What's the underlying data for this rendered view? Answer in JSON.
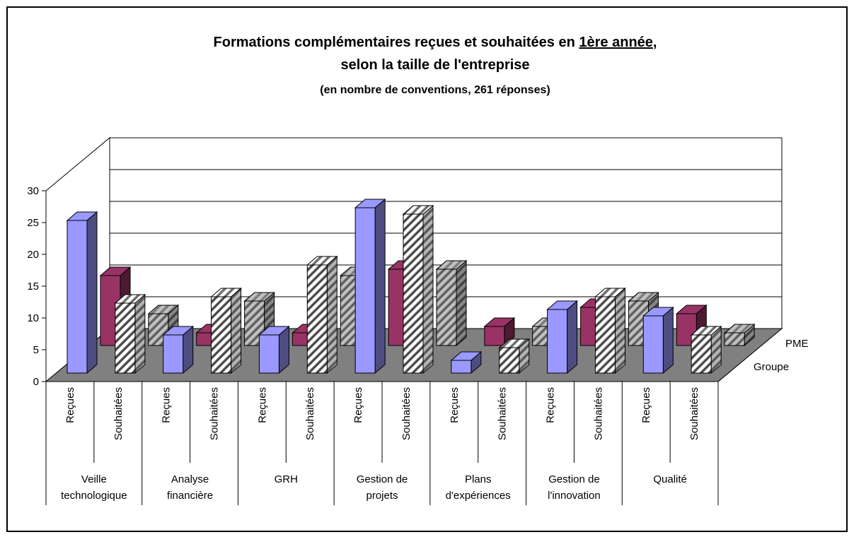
{
  "chart_data": {
    "type": "bar3d",
    "title": [
      "Formations complémentaires reçues et souhaitées en ",
      "1ère année",
      ",",
      "selon la taille de l'entreprise"
    ],
    "subtitle": "(en nombre de conventions, 261 réponses)",
    "categories": [
      "Reçues",
      "Souhaitées",
      "Reçues",
      "Souhaitées",
      "Reçues",
      "Souhaitées",
      "Reçues",
      "Souhaitées",
      "Reçues",
      "Souhaitées",
      "Reçues",
      "Souhaitées",
      "Reçues",
      "Souhaitées"
    ],
    "groups": [
      [
        "Veille",
        "technologique"
      ],
      [
        "Analyse",
        "financière"
      ],
      [
        "GRH"
      ],
      [
        "Gestion de",
        "projets"
      ],
      [
        "Plans",
        "d'expériences"
      ],
      [
        "Gestion de",
        "l'innovation"
      ],
      [
        "Qualité"
      ]
    ],
    "series": [
      {
        "name": "Groupe",
        "colors": [
          "#9999ff",
          "#ffffff"
        ],
        "hatch": [
          false,
          true
        ],
        "values": [
          24,
          11,
          6,
          12,
          6,
          17,
          26,
          25,
          2,
          4,
          10,
          12,
          9,
          6
        ]
      },
      {
        "name": "PME",
        "colors": [
          "#993366",
          "#c0c0c0"
        ],
        "hatch": [
          false,
          true
        ],
        "values": [
          11,
          5,
          2,
          7,
          2,
          11,
          12,
          12,
          3,
          3,
          6,
          7,
          5,
          2
        ]
      }
    ],
    "ylim": [
      0,
      30
    ],
    "yticks": [
      0,
      5,
      10,
      15,
      20,
      25,
      30
    ],
    "grid": true
  }
}
